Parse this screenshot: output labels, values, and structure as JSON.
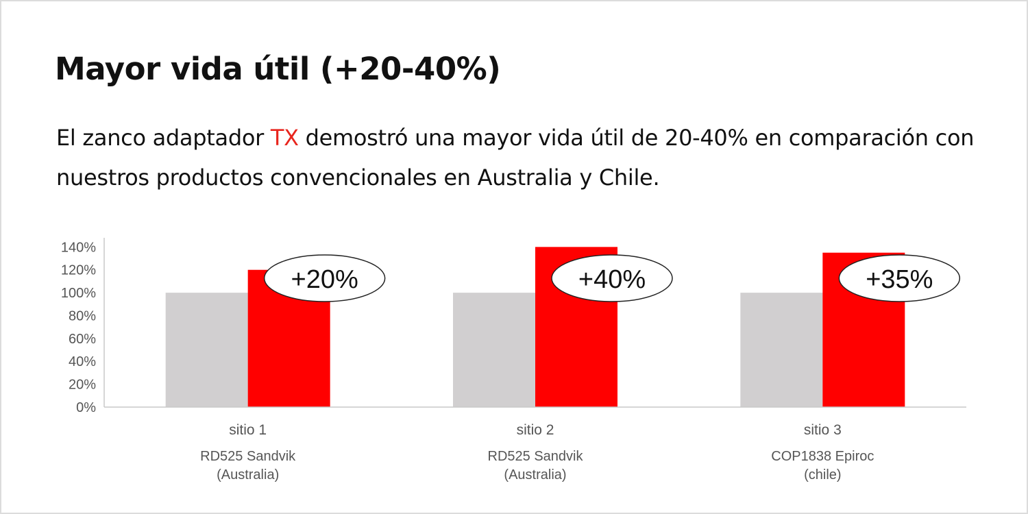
{
  "header": {
    "title": "Mayor vida útil (+20-40%)",
    "description_before": "El zanco adaptador ",
    "description_highlight": "TX",
    "description_after": " demostró una mayor vida útil de 20-40% en comparación con nuestros productos convencionales en Australia y Chile."
  },
  "colors": {
    "conventional_bar": "#d1cfd0",
    "tx_bar": "#ff0000",
    "highlight_text": "#e8251d",
    "axis": "#c8c8c8",
    "tick_text": "#555555"
  },
  "chart_data": {
    "type": "bar",
    "categories": [
      "sitio 1",
      "sitio 2",
      "sitio 3"
    ],
    "category_sublabels": [
      [
        "RD525 Sandvik",
        "(Australia)"
      ],
      [
        "RD525 Sandvik",
        "(Australia)"
      ],
      [
        "COP1838 Epiroc",
        "(chile)"
      ]
    ],
    "series": [
      {
        "values": [
          100,
          100,
          100
        ]
      },
      {
        "values": [
          120,
          140,
          135
        ]
      }
    ],
    "annotations": [
      "+20%",
      "+40%",
      "+35%"
    ],
    "yticks": [
      "0%",
      "20%",
      "40%",
      "60%",
      "80%",
      "100%",
      "120%",
      "140%"
    ],
    "ylim": [
      0,
      148
    ],
    "grid": false,
    "legend": "none"
  }
}
